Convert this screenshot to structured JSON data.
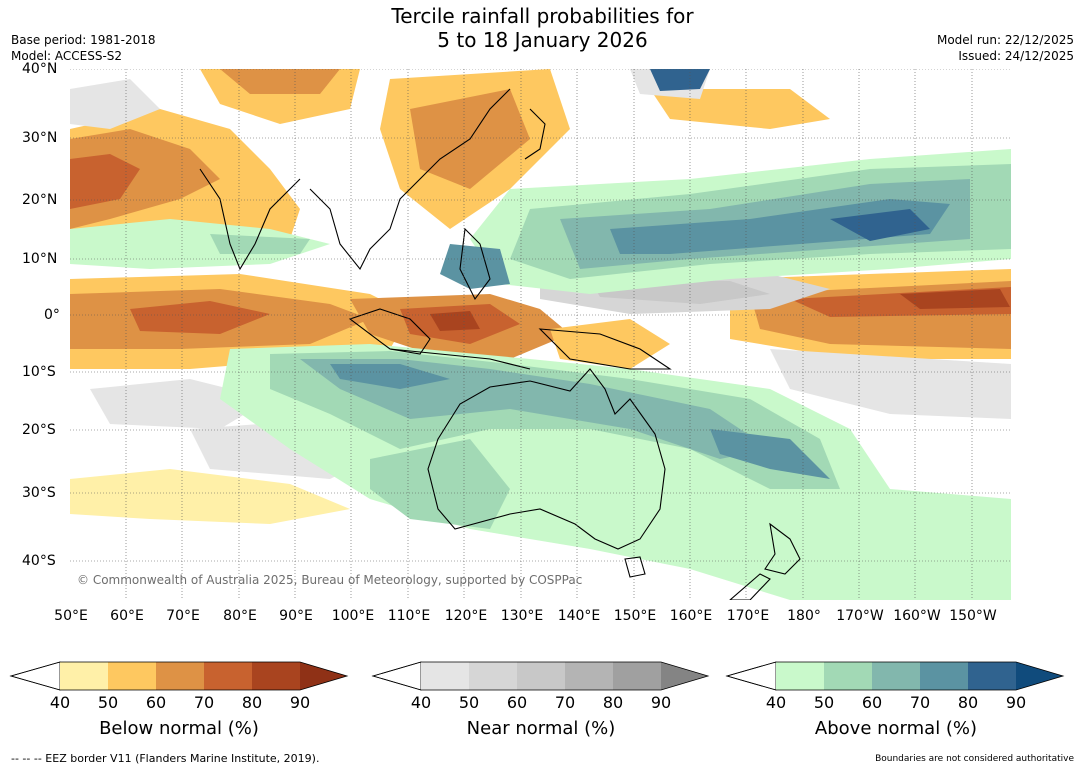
{
  "title": {
    "line1": "Tercile rainfall probabilities for",
    "line2": "5 to 18 January 2026"
  },
  "meta": {
    "base_period": "Base period: 1981-2018",
    "model": "Model: ACCESS-S2",
    "model_run": "Model run: 22/12/2025",
    "issued": "Issued: 24/12/2025"
  },
  "map": {
    "lat_labels": [
      "40°N",
      "30°N",
      "20°N",
      "10°N",
      "0°",
      "10°S",
      "20°S",
      "30°S",
      "40°S"
    ],
    "lon_labels": [
      "50°E",
      "60°E",
      "70°E",
      "80°E",
      "90°E",
      "100°E",
      "110°E",
      "120°E",
      "130°E",
      "140°E",
      "150°E",
      "160°E",
      "170°E",
      "180°",
      "170°W",
      "160°W",
      "150°W"
    ],
    "copyright": "© Commonwealth of Australia 2025, Bureau of Meteorology, supported by COSPPac"
  },
  "colorbars": [
    {
      "label": "Below normal (%)",
      "ticks": [
        "40",
        "50",
        "60",
        "70",
        "80",
        "90"
      ],
      "colors": [
        "#fff0a8",
        "#fec860",
        "#de9245",
        "#c8622f",
        "#a9441f"
      ],
      "arrow": "#8f3116"
    },
    {
      "label": "Near normal (%)",
      "ticks": [
        "40",
        "50",
        "60",
        "70",
        "80",
        "90"
      ],
      "colors": [
        "#e5e5e5",
        "#d6d6d6",
        "#c8c8c8",
        "#b4b4b4",
        "#a0a0a0"
      ],
      "arrow": "#848484"
    },
    {
      "label": "Above normal (%)",
      "ticks": [
        "40",
        "50",
        "60",
        "70",
        "80",
        "90"
      ],
      "colors": [
        "#c9f9cb",
        "#a2d9b5",
        "#82b7ad",
        "#5b93a2",
        "#30638f"
      ],
      "arrow": "#104b7c"
    }
  ],
  "footer": {
    "eez": "--  --  -- EEZ border V11 (Flanders Marine Institute, 2019).",
    "disclaimer": "Boundaries are not considered authoritative"
  }
}
